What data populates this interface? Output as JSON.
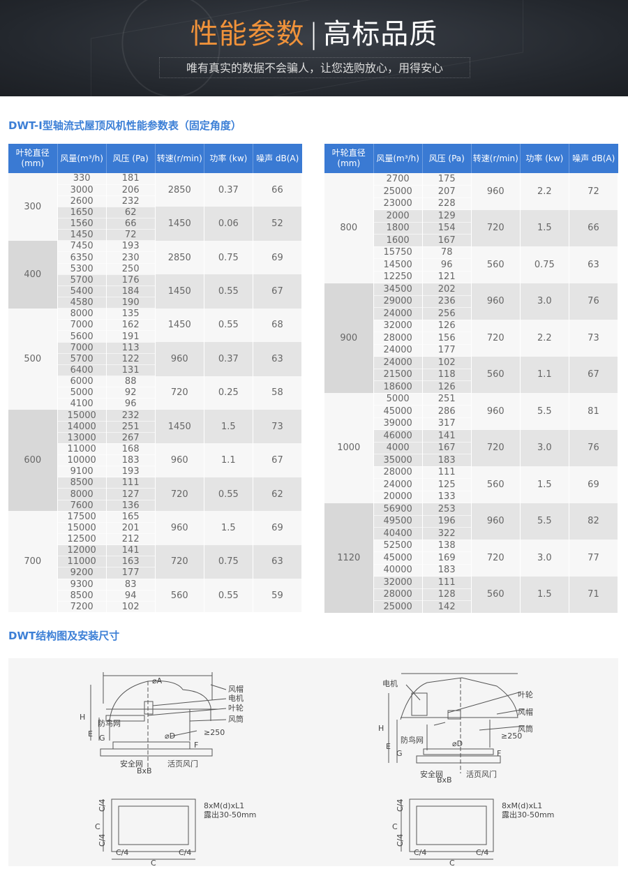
{
  "banner": {
    "title_highlight": "性能参数",
    "separator": "|",
    "title_rest": "高标品质",
    "subtitle": "唯有真实的数据不会骗人，让您选购放心，用得安心",
    "accent": "#f0923a"
  },
  "section1": {
    "title": "DWT-Ⅰ型轴流式屋顶风机性能参数表（固定角度）"
  },
  "section2": {
    "title": "DWT结构图及安装尺寸"
  },
  "colors": {
    "header": "#3a7ad3",
    "title": "#3c7fd6"
  },
  "columns": [
    "叶轮直径(mm)",
    "风量(m³/h)",
    "风压 (Pa)",
    "转速(r/min)",
    "功率 (kw)",
    "噪声 dB(A)"
  ],
  "tables": [
    {
      "groups": [
        {
          "diameter": "300",
          "speeds": [
            {
              "rpm": "2850",
              "power": "0.37",
              "noise": "66",
              "rows": [
                [
                  "330",
                  "181"
                ],
                [
                  "3000",
                  "206"
                ],
                [
                  "2600",
                  "232"
                ]
              ]
            },
            {
              "rpm": "1450",
              "power": "0.06",
              "noise": "52",
              "rows": [
                [
                  "1650",
                  "62"
                ],
                [
                  "1560",
                  "66"
                ],
                [
                  "1450",
                  "72"
                ]
              ]
            }
          ]
        },
        {
          "diameter": "400",
          "speeds": [
            {
              "rpm": "2850",
              "power": "0.75",
              "noise": "69",
              "rows": [
                [
                  "7450",
                  "193"
                ],
                [
                  "6350",
                  "230"
                ],
                [
                  "5300",
                  "250"
                ]
              ]
            },
            {
              "rpm": "1450",
              "power": "0.55",
              "noise": "67",
              "rows": [
                [
                  "5700",
                  "176"
                ],
                [
                  "5400",
                  "184"
                ],
                [
                  "4580",
                  "190"
                ]
              ]
            }
          ]
        },
        {
          "diameter": "500",
          "speeds": [
            {
              "rpm": "1450",
              "power": "0.55",
              "noise": "68",
              "rows": [
                [
                  "8000",
                  "135"
                ],
                [
                  "7000",
                  "162"
                ],
                [
                  "5600",
                  "191"
                ]
              ]
            },
            {
              "rpm": "960",
              "power": "0.37",
              "noise": "63",
              "rows": [
                [
                  "7000",
                  "113"
                ],
                [
                  "5700",
                  "122"
                ],
                [
                  "6400",
                  "131"
                ]
              ]
            },
            {
              "rpm": "720",
              "power": "0.25",
              "noise": "58",
              "rows": [
                [
                  "6000",
                  "88"
                ],
                [
                  "5000",
                  "92"
                ],
                [
                  "4100",
                  "96"
                ]
              ]
            }
          ]
        },
        {
          "diameter": "600",
          "speeds": [
            {
              "rpm": "1450",
              "power": "1.5",
              "noise": "73",
              "rows": [
                [
                  "15000",
                  "232"
                ],
                [
                  "14000",
                  "251"
                ],
                [
                  "13000",
                  "267"
                ]
              ]
            },
            {
              "rpm": "960",
              "power": "1.1",
              "noise": "67",
              "rows": [
                [
                  "11000",
                  "168"
                ],
                [
                  "10000",
                  "183"
                ],
                [
                  "9100",
                  "193"
                ]
              ]
            },
            {
              "rpm": "720",
              "power": "0.55",
              "noise": "62",
              "rows": [
                [
                  "8500",
                  "111"
                ],
                [
                  "8000",
                  "127"
                ],
                [
                  "7600",
                  "136"
                ]
              ]
            }
          ]
        },
        {
          "diameter": "700",
          "speeds": [
            {
              "rpm": "960",
              "power": "1.5",
              "noise": "69",
              "rows": [
                [
                  "17500",
                  "165"
                ],
                [
                  "15000",
                  "201"
                ],
                [
                  "12500",
                  "212"
                ]
              ]
            },
            {
              "rpm": "720",
              "power": "0.75",
              "noise": "63",
              "rows": [
                [
                  "12000",
                  "141"
                ],
                [
                  "11000",
                  "163"
                ],
                [
                  "9200",
                  "177"
                ]
              ]
            },
            {
              "rpm": "560",
              "power": "0.55",
              "noise": "59",
              "rows": [
                [
                  "9300",
                  "83"
                ],
                [
                  "8500",
                  "94"
                ],
                [
                  "7200",
                  "102"
                ]
              ]
            }
          ]
        }
      ]
    },
    {
      "groups": [
        {
          "diameter": "800",
          "speeds": [
            {
              "rpm": "960",
              "power": "2.2",
              "noise": "72",
              "rows": [
                [
                  "2700",
                  "175"
                ],
                [
                  "25000",
                  "207"
                ],
                [
                  "23000",
                  "228"
                ]
              ]
            },
            {
              "rpm": "720",
              "power": "1.5",
              "noise": "66",
              "rows": [
                [
                  "2000",
                  "129"
                ],
                [
                  "1800",
                  "154"
                ],
                [
                  "1600",
                  "167"
                ]
              ]
            },
            {
              "rpm": "560",
              "power": "0.75",
              "noise": "63",
              "rows": [
                [
                  "15750",
                  "78"
                ],
                [
                  "14500",
                  "96"
                ],
                [
                  "12250",
                  "121"
                ]
              ]
            }
          ]
        },
        {
          "diameter": "900",
          "speeds": [
            {
              "rpm": "960",
              "power": "3.0",
              "noise": "76",
              "rows": [
                [
                  "34500",
                  "202"
                ],
                [
                  "29000",
                  "236"
                ],
                [
                  "24000",
                  "256"
                ]
              ]
            },
            {
              "rpm": "720",
              "power": "2.2",
              "noise": "73",
              "rows": [
                [
                  "32000",
                  "126"
                ],
                [
                  "28000",
                  "156"
                ],
                [
                  "24000",
                  "177"
                ]
              ]
            },
            {
              "rpm": "560",
              "power": "1.1",
              "noise": "67",
              "rows": [
                [
                  "24000",
                  "102"
                ],
                [
                  "21500",
                  "118"
                ],
                [
                  "18600",
                  "126"
                ]
              ]
            }
          ]
        },
        {
          "diameter": "1000",
          "speeds": [
            {
              "rpm": "960",
              "power": "5.5",
              "noise": "81",
              "rows": [
                [
                  "5000",
                  "251"
                ],
                [
                  "45000",
                  "286"
                ],
                [
                  "39000",
                  "317"
                ]
              ]
            },
            {
              "rpm": "720",
              "power": "3.0",
              "noise": "76",
              "rows": [
                [
                  "46000",
                  "141"
                ],
                [
                  "4000",
                  "167"
                ],
                [
                  "35000",
                  "183"
                ]
              ]
            },
            {
              "rpm": "560",
              "power": "1.5",
              "noise": "69",
              "rows": [
                [
                  "28000",
                  "111"
                ],
                [
                  "24000",
                  "125"
                ],
                [
                  "20000",
                  "133"
                ]
              ]
            }
          ]
        },
        {
          "diameter": "1120",
          "speeds": [
            {
              "rpm": "960",
              "power": "5.5",
              "noise": "82",
              "rows": [
                [
                  "56900",
                  "253"
                ],
                [
                  "49500",
                  "196"
                ],
                [
                  "40400",
                  "322"
                ]
              ]
            },
            {
              "rpm": "720",
              "power": "3.0",
              "noise": "77",
              "rows": [
                [
                  "52500",
                  "138"
                ],
                [
                  "45000",
                  "169"
                ],
                [
                  "40000",
                  "183"
                ]
              ]
            },
            {
              "rpm": "560",
              "power": "1.5",
              "noise": "71",
              "rows": [
                [
                  "32000",
                  "111"
                ],
                [
                  "28000",
                  "128"
                ],
                [
                  "25000",
                  "142"
                ]
              ]
            }
          ]
        }
      ]
    }
  ],
  "diagram": {
    "labels": {
      "cap": "风帽",
      "motor": "电机",
      "impeller": "叶轮",
      "bird_net": "防鸟网",
      "duct": "风筒",
      "safety_net": "安全网",
      "damper": "活页风门",
      "A": "⌀A",
      "D": "⌀D",
      "H": "H",
      "E": "E",
      "G": "G",
      "F": "F",
      "h250": "≥250",
      "BxB": "BxB"
    },
    "base": {
      "bolts": "8xM(d)xL1",
      "exposed": "露出30-50mm",
      "C": "C",
      "C4": "C/4"
    }
  }
}
